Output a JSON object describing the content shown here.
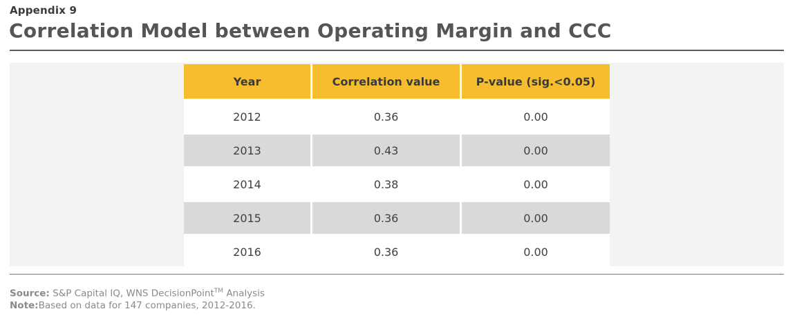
{
  "header": {
    "appendix": "Appendix 9",
    "title": "Correlation Model between Operating Margin and CCC"
  },
  "table": {
    "columns": [
      "Year",
      "Correlation value",
      "P-value (sig.<0.05)"
    ],
    "rows": [
      [
        "2012",
        "0.36",
        "0.00"
      ],
      [
        "2013",
        "0.43",
        "0.00"
      ],
      [
        "2014",
        "0.38",
        "0.00"
      ],
      [
        "2015",
        "0.36",
        "0.00"
      ],
      [
        "2016",
        "0.36",
        "0.00"
      ]
    ]
  },
  "footer": {
    "source_label": "Source:",
    "source_text": " S&P Capital IQ, WNS DecisionPoint",
    "source_tm": "TM",
    "source_suffix": " Analysis",
    "note_label": "Note:",
    "note_text": "Based on data for 147 companies, 2012-2016."
  },
  "colors": {
    "header_fill": "#f6bd2e",
    "shaded_row": "#d9d9d9",
    "panel_bg": "#f3f3f3"
  }
}
